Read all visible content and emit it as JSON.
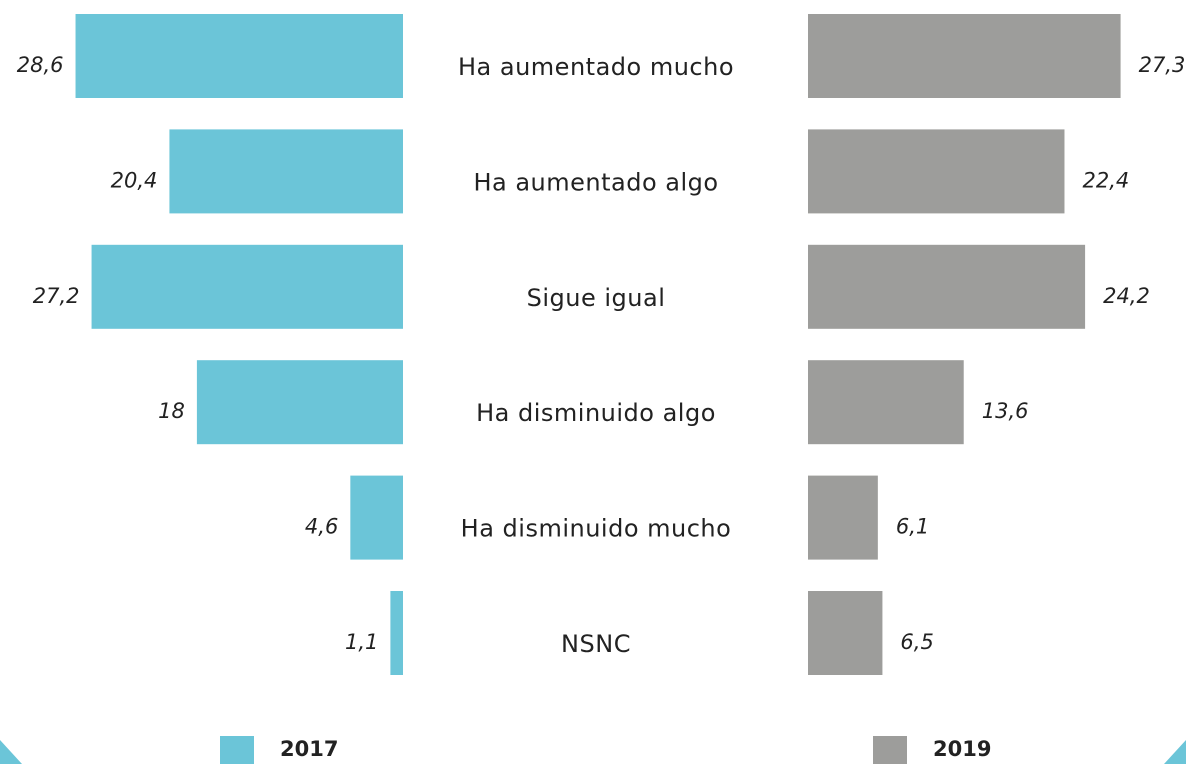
{
  "chart_data": {
    "type": "bar",
    "categories": [
      "Ha aumentado mucho",
      "Ha aumentado algo",
      "Sigue igual",
      "Ha disminuido algo",
      "Ha disminuido mucho",
      "NSNC"
    ],
    "series": [
      {
        "name": "2017",
        "color": "#6bc5d8",
        "values": [
          28.6,
          20.4,
          27.2,
          18,
          4.6,
          1.1
        ],
        "value_labels": [
          "28,6",
          "20,4",
          "27,2",
          "18",
          "4,6",
          "1,1"
        ]
      },
      {
        "name": "2019",
        "color": "#9d9d9b",
        "values": [
          27.3,
          22.4,
          24.2,
          13.6,
          6.1,
          6.5
        ],
        "value_labels": [
          "27,3",
          "22,4",
          "24,2",
          "13,6",
          "6,1",
          "6,5"
        ]
      }
    ]
  }
}
